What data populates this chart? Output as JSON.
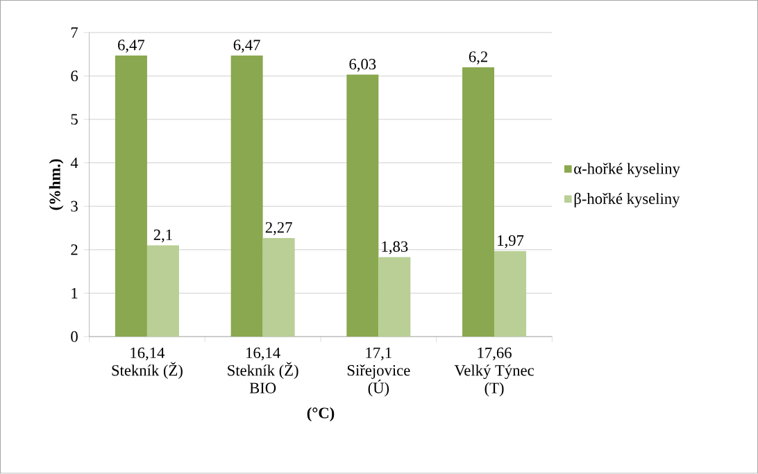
{
  "chart_data": {
    "type": "bar",
    "xlabel": "(°C)",
    "ylabel": "(%hm.)",
    "categories": [
      "16,14\nStekník (Ž)",
      "16,14\nStekník (Ž)\nBIO",
      "17,1\nSiřejovice\n(Ú)",
      "17,66\nVelký Týnec\n(T)"
    ],
    "series": [
      {
        "name": "α-hořké kyseliny",
        "color": "#8aa84f",
        "values": [
          6.47,
          6.47,
          6.03,
          6.2
        ],
        "value_labels": [
          "6,47",
          "6,47",
          "6,03",
          "6,2"
        ]
      },
      {
        "name": "β-hořké kyseliny",
        "color": "#b9cf96",
        "values": [
          2.1,
          2.27,
          1.83,
          1.97
        ],
        "value_labels": [
          "2,1",
          "2,27",
          "1,83",
          "1,97"
        ]
      }
    ],
    "ylim": [
      0,
      7
    ],
    "yticks": [
      0,
      1,
      2,
      3,
      4,
      5,
      6,
      7
    ],
    "grid": "y",
    "legend": "right"
  }
}
